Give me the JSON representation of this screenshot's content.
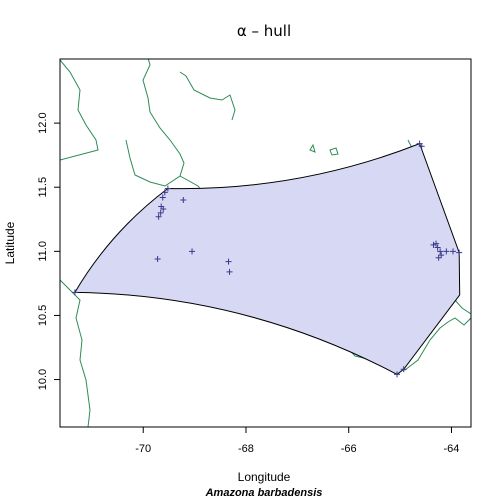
{
  "title": "α – hull",
  "x_axis_label": "Longitude",
  "y_axis_label": "Latitude",
  "species_label": "Amazona barbadensis",
  "chart_data": {
    "type": "scatter",
    "xlim": [
      -71.62,
      -63.62
    ],
    "ylim": [
      9.63,
      12.5
    ],
    "x_ticks": [
      -70,
      -68,
      -66,
      -64
    ],
    "y_ticks": [
      10.0,
      10.5,
      11.0,
      11.5,
      12.0
    ],
    "x_tick_labels": [
      "-70",
      "-68",
      "-66",
      "-64"
    ],
    "y_tick_labels": [
      "10.0",
      "10.5",
      "11.0",
      "11.5",
      "12.0"
    ],
    "grid": false,
    "colors": {
      "hull_fill": "#d6d8f4",
      "hull_edge": "#000000",
      "points": "#3a3a8c",
      "coastline": "#2e8b57"
    },
    "hull_vertices": [
      [
        -71.33,
        10.68
      ],
      [
        -69.52,
        11.49
      ],
      [
        -64.62,
        11.84
      ],
      [
        -63.85,
        10.99
      ],
      [
        -63.84,
        10.66
      ],
      [
        -64.93,
        10.08
      ],
      [
        -65.06,
        10.04
      ]
    ],
    "points": [
      [
        -71.33,
        10.68
      ],
      [
        -69.52,
        11.49
      ],
      [
        -69.58,
        11.46
      ],
      [
        -69.62,
        11.42
      ],
      [
        -69.65,
        11.35
      ],
      [
        -69.61,
        11.33
      ],
      [
        -69.66,
        11.3
      ],
      [
        -69.7,
        11.27
      ],
      [
        -69.22,
        11.4
      ],
      [
        -69.72,
        10.94
      ],
      [
        -69.05,
        11.0
      ],
      [
        -68.34,
        10.92
      ],
      [
        -68.32,
        10.84
      ],
      [
        -64.62,
        11.84
      ],
      [
        -64.58,
        11.82
      ],
      [
        -64.35,
        11.05
      ],
      [
        -64.3,
        11.06
      ],
      [
        -64.27,
        11.03
      ],
      [
        -64.22,
        11.0
      ],
      [
        -64.2,
        10.97
      ],
      [
        -64.25,
        10.95
      ],
      [
        -64.1,
        11.0
      ],
      [
        -63.97,
        11.0
      ],
      [
        -63.85,
        10.99
      ],
      [
        -65.06,
        10.04
      ],
      [
        -64.93,
        10.08
      ]
    ]
  }
}
